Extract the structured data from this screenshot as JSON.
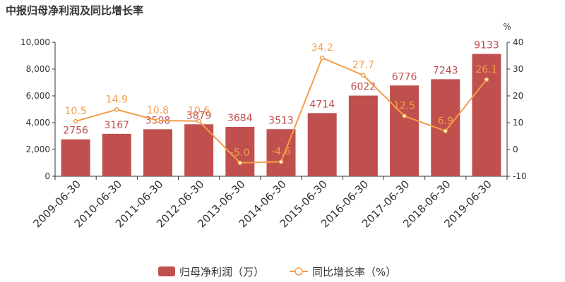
{
  "chart_data": {
    "type": "bar+line",
    "title": "中报归母净利润及同比增长率",
    "categories": [
      "2009-06-30",
      "2010-06-30",
      "2011-06-30",
      "2012-06-30",
      "2013-06-30",
      "2014-06-30",
      "2015-06-30",
      "2016-06-30",
      "2017-06-30",
      "2018-06-30",
      "2019-06-30"
    ],
    "series": [
      {
        "name": "归母净利润（万）",
        "type": "bar",
        "axis": "left",
        "color": "#c0504d",
        "label_color": "#c0504d",
        "values": [
          2756,
          3167,
          3508,
          3879,
          3684,
          3513,
          4714,
          6022,
          6776,
          7243,
          9133
        ],
        "labels": [
          "2756",
          "3167",
          "3508",
          "3879",
          "3684",
          "3513",
          "4714",
          "6022",
          "6776",
          "7243",
          "9133"
        ]
      },
      {
        "name": "同比增长率（%）",
        "type": "line",
        "axis": "right",
        "color": "#f39c49",
        "label_color": "#f39c49",
        "values": [
          10.5,
          14.9,
          10.8,
          10.6,
          -5.0,
          -4.6,
          34.2,
          27.7,
          12.5,
          6.9,
          26.1
        ],
        "labels": [
          "10.5",
          "14.9",
          "10.8",
          "10.6",
          "-5.0",
          "-4.6",
          "34.2",
          "27.7",
          "12.5",
          "6.9",
          "26.1"
        ]
      }
    ],
    "y_left": {
      "range": [
        0,
        10000
      ],
      "ticks": [
        0,
        2000,
        4000,
        6000,
        8000,
        10000
      ],
      "tick_labels": [
        "0",
        "2,000",
        "4,000",
        "6,000",
        "8,000",
        "10,000"
      ]
    },
    "y_right": {
      "label": "%",
      "range": [
        -10,
        40
      ],
      "ticks": [
        -10,
        0,
        10,
        20,
        30,
        40
      ],
      "tick_labels": [
        "-10",
        "0",
        "10",
        "20",
        "30",
        "40"
      ]
    },
    "legend": {
      "placement": "bottom-center",
      "items": [
        "归母净利润（万）",
        "同比增长率（%）"
      ]
    },
    "grid": false
  }
}
